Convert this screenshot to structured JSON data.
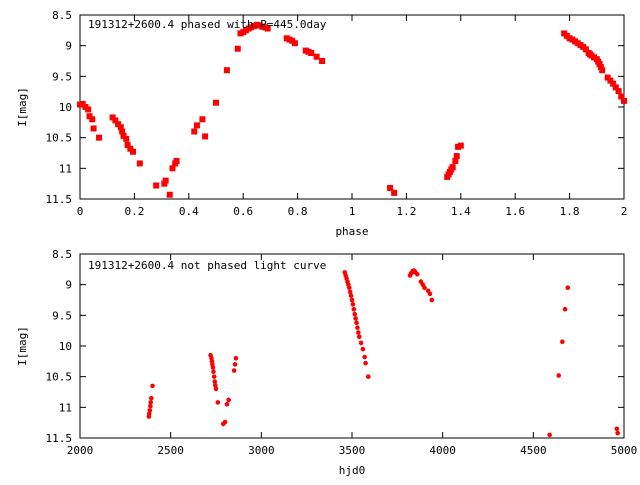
{
  "colors": {
    "points": "#ff0000",
    "axes": "#000000",
    "background": "#ffffff"
  },
  "chart_data": [
    {
      "type": "scatter",
      "title": "191312+2600.4 phased with P=445.0day",
      "xlabel": "phase",
      "ylabel": "I[mag]",
      "xlim": [
        0,
        2
      ],
      "ylim": [
        8.5,
        11.5
      ],
      "y_inverted": true,
      "xticks": [
        "0",
        "0.2",
        "0.4",
        "0.6",
        "0.8",
        "1",
        "1.2",
        "1.4",
        "1.6",
        "1.8",
        "2"
      ],
      "yticks": [
        "8.5",
        "9",
        "9.5",
        "10",
        "10.5",
        "11",
        "11.5"
      ],
      "grid": false,
      "legend": "none",
      "marker": "filled-square",
      "points": [
        [
          0.0,
          9.96
        ],
        [
          0.01,
          9.95
        ],
        [
          0.02,
          10.0
        ],
        [
          0.03,
          10.04
        ],
        [
          0.035,
          10.15
        ],
        [
          0.045,
          10.2
        ],
        [
          0.05,
          10.35
        ],
        [
          0.07,
          10.5
        ],
        [
          0.12,
          10.17
        ],
        [
          0.13,
          10.22
        ],
        [
          0.14,
          10.28
        ],
        [
          0.15,
          10.33
        ],
        [
          0.155,
          10.4
        ],
        [
          0.16,
          10.47
        ],
        [
          0.17,
          10.52
        ],
        [
          0.175,
          10.62
        ],
        [
          0.185,
          10.68
        ],
        [
          0.195,
          10.73
        ],
        [
          0.22,
          10.92
        ],
        [
          0.28,
          11.28
        ],
        [
          0.31,
          11.25
        ],
        [
          0.315,
          11.2
        ],
        [
          0.33,
          11.43
        ],
        [
          0.34,
          11.0
        ],
        [
          0.35,
          10.92
        ],
        [
          0.355,
          10.88
        ],
        [
          0.42,
          10.4
        ],
        [
          0.43,
          10.3
        ],
        [
          0.45,
          10.2
        ],
        [
          0.46,
          10.48
        ],
        [
          0.5,
          9.93
        ],
        [
          0.54,
          9.4
        ],
        [
          0.58,
          9.05
        ],
        [
          0.59,
          8.8
        ],
        [
          0.6,
          8.78
        ],
        [
          0.61,
          8.75
        ],
        [
          0.62,
          8.72
        ],
        [
          0.63,
          8.7
        ],
        [
          0.64,
          8.68
        ],
        [
          0.65,
          8.66
        ],
        [
          0.66,
          8.67
        ],
        [
          0.67,
          8.69
        ],
        [
          0.68,
          8.7
        ],
        [
          0.69,
          8.72
        ],
        [
          0.76,
          8.88
        ],
        [
          0.77,
          8.9
        ],
        [
          0.78,
          8.92
        ],
        [
          0.79,
          8.96
        ],
        [
          0.83,
          9.08
        ],
        [
          0.84,
          9.1
        ],
        [
          0.85,
          9.12
        ],
        [
          0.87,
          9.18
        ],
        [
          0.89,
          9.25
        ],
        [
          1.14,
          11.32
        ],
        [
          1.155,
          11.4
        ],
        [
          1.35,
          11.14
        ],
        [
          1.355,
          11.1
        ],
        [
          1.36,
          11.06
        ],
        [
          1.365,
          11.02
        ],
        [
          1.37,
          10.98
        ],
        [
          1.38,
          10.88
        ],
        [
          1.385,
          10.8
        ],
        [
          1.39,
          10.65
        ],
        [
          1.4,
          10.63
        ],
        [
          1.78,
          8.8
        ],
        [
          1.79,
          8.84
        ],
        [
          1.8,
          8.88
        ],
        [
          1.81,
          8.9
        ],
        [
          1.82,
          8.93
        ],
        [
          1.83,
          8.96
        ],
        [
          1.84,
          8.99
        ],
        [
          1.85,
          9.02
        ],
        [
          1.86,
          9.06
        ],
        [
          1.87,
          9.12
        ],
        [
          1.875,
          9.14
        ],
        [
          1.88,
          9.16
        ],
        [
          1.89,
          9.19
        ],
        [
          1.9,
          9.22
        ],
        [
          1.905,
          9.26
        ],
        [
          1.91,
          9.3
        ],
        [
          1.915,
          9.35
        ],
        [
          1.92,
          9.4
        ],
        [
          1.94,
          9.52
        ],
        [
          1.95,
          9.57
        ],
        [
          1.96,
          9.62
        ],
        [
          1.97,
          9.68
        ],
        [
          1.98,
          9.74
        ],
        [
          1.99,
          9.83
        ],
        [
          2.0,
          9.9
        ]
      ]
    },
    {
      "type": "scatter",
      "title": "191312+2600.4 not phased light curve",
      "xlabel": "hjd0",
      "ylabel": "I[mag]",
      "xlim": [
        2000,
        5000
      ],
      "ylim": [
        8.5,
        11.5
      ],
      "y_inverted": true,
      "xticks": [
        "2000",
        "2500",
        "3000",
        "3500",
        "4000",
        "4500",
        "5000"
      ],
      "yticks": [
        "8.5",
        "9",
        "9.5",
        "10",
        "10.5",
        "11",
        "11.5"
      ],
      "grid": false,
      "legend": "none",
      "marker": "filled-circle",
      "points": [
        [
          2380,
          11.15
        ],
        [
          2382,
          11.1
        ],
        [
          2385,
          11.05
        ],
        [
          2388,
          10.98
        ],
        [
          2390,
          10.92
        ],
        [
          2393,
          10.85
        ],
        [
          2400,
          10.65
        ],
        [
          2720,
          10.15
        ],
        [
          2725,
          10.2
        ],
        [
          2728,
          10.25
        ],
        [
          2730,
          10.3
        ],
        [
          2733,
          10.35
        ],
        [
          2736,
          10.42
        ],
        [
          2740,
          10.5
        ],
        [
          2743,
          10.58
        ],
        [
          2746,
          10.64
        ],
        [
          2750,
          10.7
        ],
        [
          2760,
          10.92
        ],
        [
          2790,
          11.27
        ],
        [
          2800,
          11.24
        ],
        [
          2810,
          10.95
        ],
        [
          2820,
          10.88
        ],
        [
          2850,
          10.4
        ],
        [
          2855,
          10.3
        ],
        [
          2860,
          10.2
        ],
        [
          3460,
          8.8
        ],
        [
          3465,
          8.85
        ],
        [
          3470,
          8.9
        ],
        [
          3475,
          8.95
        ],
        [
          3480,
          9.0
        ],
        [
          3485,
          9.05
        ],
        [
          3490,
          9.12
        ],
        [
          3495,
          9.18
        ],
        [
          3500,
          9.25
        ],
        [
          3505,
          9.32
        ],
        [
          3510,
          9.4
        ],
        [
          3515,
          9.48
        ],
        [
          3520,
          9.55
        ],
        [
          3525,
          9.62
        ],
        [
          3530,
          9.7
        ],
        [
          3535,
          9.78
        ],
        [
          3540,
          9.85
        ],
        [
          3550,
          9.95
        ],
        [
          3560,
          10.05
        ],
        [
          3570,
          10.18
        ],
        [
          3575,
          10.28
        ],
        [
          3590,
          10.5
        ],
        [
          3820,
          8.85
        ],
        [
          3825,
          8.82
        ],
        [
          3830,
          8.8
        ],
        [
          3835,
          8.78
        ],
        [
          3840,
          8.77
        ],
        [
          3845,
          8.78
        ],
        [
          3850,
          8.8
        ],
        [
          3860,
          8.83
        ],
        [
          3880,
          8.95
        ],
        [
          3890,
          9.0
        ],
        [
          3900,
          9.05
        ],
        [
          3920,
          9.1
        ],
        [
          3930,
          9.15
        ],
        [
          3940,
          9.25
        ],
        [
          4590,
          11.45
        ],
        [
          4640,
          10.48
        ],
        [
          4660,
          9.93
        ],
        [
          4675,
          9.4
        ],
        [
          4690,
          9.05
        ],
        [
          4960,
          11.35
        ],
        [
          4965,
          11.42
        ]
      ]
    }
  ]
}
